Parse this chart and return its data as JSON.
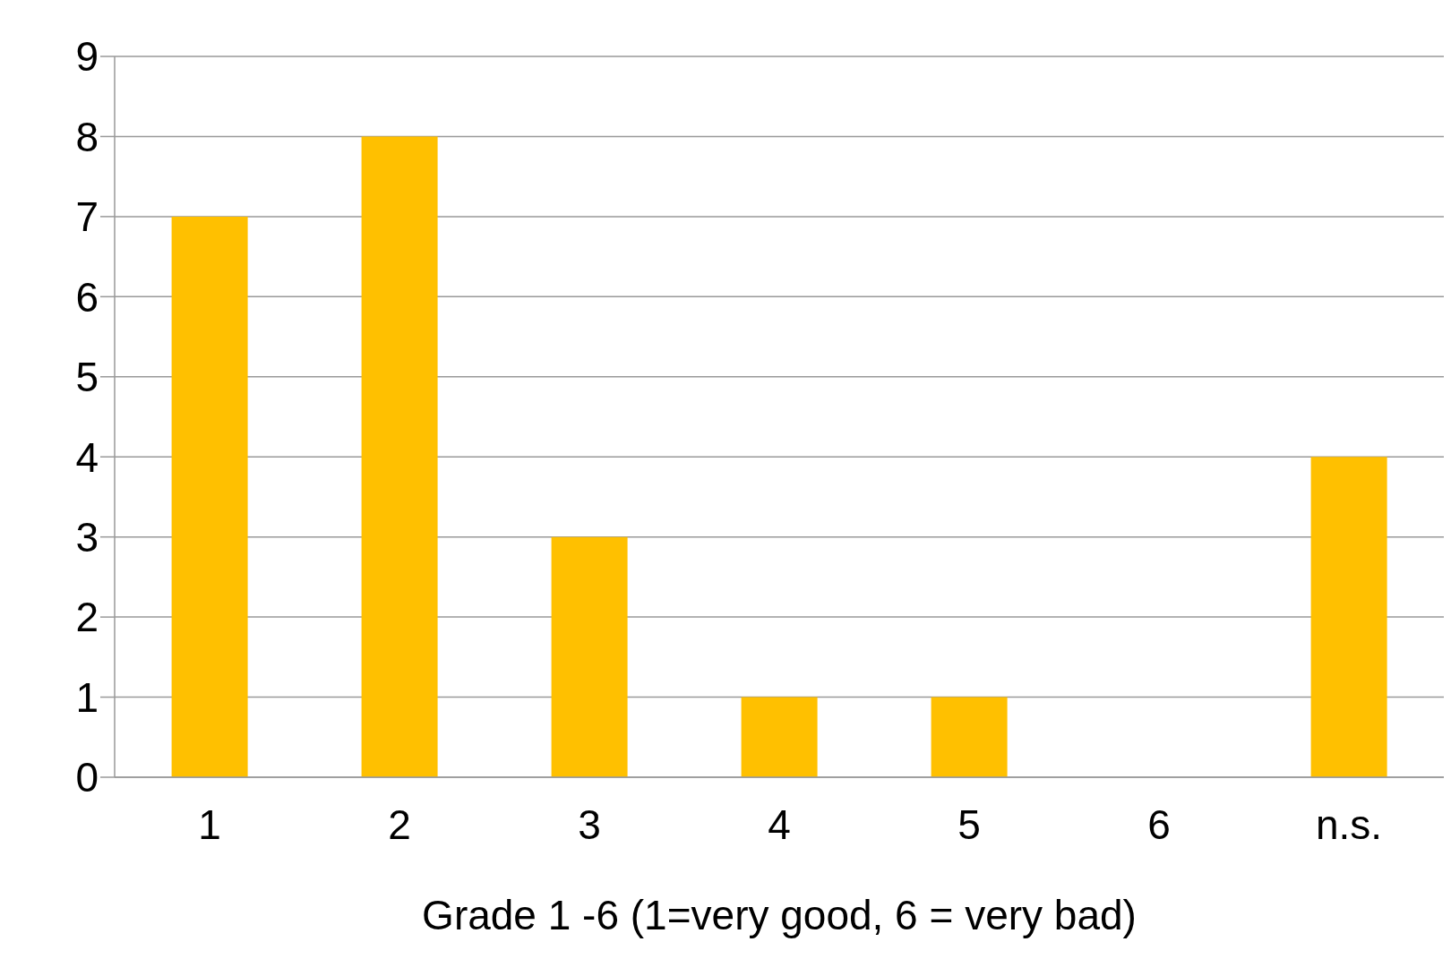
{
  "chart_data": {
    "type": "bar",
    "xlabel": "Grade  1 -6 (1=very good, 6 = very bad)",
    "categories": [
      "1",
      "2",
      "3",
      "4",
      "5",
      "6",
      "n.s."
    ],
    "values": [
      7,
      8,
      3,
      1,
      1,
      0,
      4
    ],
    "color": "#ffc000",
    "ylim": [
      0,
      9
    ],
    "yticks": [
      0,
      1,
      2,
      3,
      4,
      5,
      6,
      7,
      8,
      9
    ],
    "grid": "y"
  }
}
